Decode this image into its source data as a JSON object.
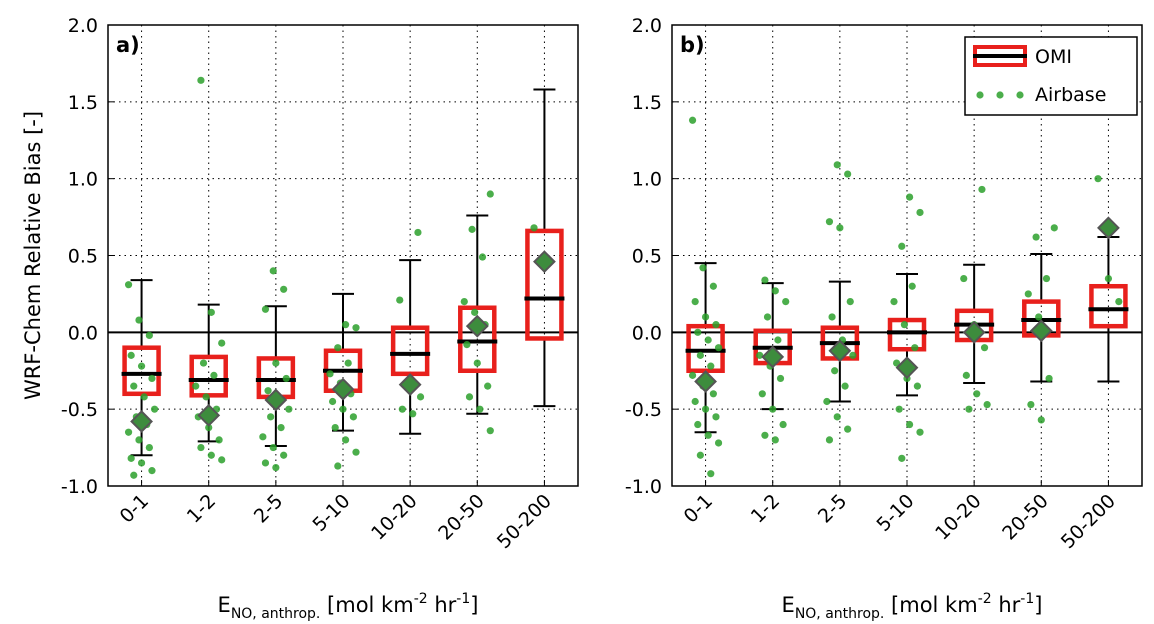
{
  "chart_data": [
    {
      "type": "box",
      "label": "a)",
      "ylabel": "WRF-Chem Relative Bias [-]",
      "xlabel": [
        {
          "text": "E"
        },
        {
          "text": "NO, anthrop.",
          "shift": "sub"
        },
        {
          "text": "  [mol km"
        },
        {
          "text": "-2",
          "shift": "sup"
        },
        {
          "text": " hr"
        },
        {
          "text": "-1",
          "shift": "sup"
        },
        {
          "text": "]"
        }
      ],
      "categories": [
        "0-1",
        "1-2",
        "2-5",
        "5-10",
        "10-20",
        "20-50",
        "50-200"
      ],
      "ylim": [
        -1,
        2
      ],
      "yticks": [
        {
          "value": -1,
          "label": "-1.0"
        },
        {
          "value": -0.5,
          "label": "-0.5"
        },
        {
          "value": 0,
          "label": "0.0"
        },
        {
          "value": 0.5,
          "label": "0.5"
        },
        {
          "value": 1,
          "label": "1.0"
        },
        {
          "value": 1.5,
          "label": "1.5"
        },
        {
          "value": 2,
          "label": "2.0"
        }
      ],
      "grid": true,
      "reference_line": 0,
      "series": [
        {
          "color": "#e8201c",
          "median_color": "#000000",
          "whisker_color": "#000000",
          "q1": [
            -0.4,
            -0.41,
            -0.42,
            -0.38,
            -0.27,
            -0.25,
            -0.04
          ],
          "median": [
            -0.27,
            -0.31,
            -0.31,
            -0.25,
            -0.14,
            -0.06,
            0.22
          ],
          "q3": [
            -0.1,
            -0.16,
            -0.17,
            -0.12,
            0.03,
            0.16,
            0.66
          ],
          "whislo": [
            -0.8,
            -0.71,
            -0.74,
            -0.64,
            -0.66,
            -0.53,
            -0.48
          ],
          "whishi": [
            0.34,
            0.18,
            0.17,
            0.25,
            0.47,
            0.76,
            1.58
          ]
        },
        {
          "color": "#2ca02c",
          "mean_color": "#3d8c3d",
          "points": [
            [
              0.31,
              0.08,
              -0.02,
              -0.15,
              -0.22,
              -0.3,
              -0.35,
              -0.42,
              -0.5,
              -0.55,
              -0.6,
              -0.65,
              -0.7,
              -0.75,
              -0.82,
              -0.85,
              -0.9,
              -0.93
            ],
            [
              1.64,
              0.13,
              -0.07,
              -0.2,
              -0.28,
              -0.35,
              -0.42,
              -0.5,
              -0.55,
              -0.62,
              -0.7,
              -0.75,
              -0.8,
              -0.83
            ],
            [
              0.4,
              0.28,
              0.15,
              -0.2,
              -0.3,
              -0.38,
              -0.45,
              -0.5,
              -0.55,
              -0.62,
              -0.68,
              -0.75,
              -0.8,
              -0.85,
              -0.88
            ],
            [
              0.05,
              0.03,
              -0.1,
              -0.2,
              -0.27,
              -0.33,
              -0.4,
              -0.45,
              -0.5,
              -0.55,
              -0.62,
              -0.7,
              -0.78,
              -0.87
            ],
            [
              0.65,
              0.21,
              -0.3,
              -0.42,
              -0.5,
              -0.53
            ],
            [
              0.9,
              0.67,
              0.49,
              0.2,
              0.13,
              0.05,
              -0.08,
              -0.2,
              -0.35,
              -0.42,
              -0.5,
              -0.64
            ],
            [
              0.68,
              0.46
            ]
          ],
          "mean": [
            -0.58,
            -0.54,
            -0.44,
            -0.37,
            -0.34,
            0.04,
            0.46
          ]
        }
      ]
    },
    {
      "type": "box",
      "label": "b)",
      "xlabel": [
        {
          "text": "E"
        },
        {
          "text": "NO, anthrop.",
          "shift": "sub"
        },
        {
          "text": "  [mol km"
        },
        {
          "text": "-2",
          "shift": "sup"
        },
        {
          "text": " hr"
        },
        {
          "text": "-1",
          "shift": "sup"
        },
        {
          "text": "]"
        }
      ],
      "categories": [
        "0-1",
        "1-2",
        "2-5",
        "5-10",
        "10-20",
        "20-50",
        "50-200"
      ],
      "ylim": [
        -1,
        2
      ],
      "yticks": [
        {
          "value": -1,
          "label": "-1.0"
        },
        {
          "value": -0.5,
          "label": "-0.5"
        },
        {
          "value": 0,
          "label": "0.0"
        },
        {
          "value": 0.5,
          "label": "0.5"
        },
        {
          "value": 1,
          "label": "1.0"
        },
        {
          "value": 1.5,
          "label": "1.5"
        },
        {
          "value": 2,
          "label": "2.0"
        }
      ],
      "grid": true,
      "reference_line": 0,
      "legend": "upper right",
      "series": [
        {
          "name": "OMI",
          "color": "#e8201c",
          "median_color": "#000000",
          "whisker_color": "#000000",
          "q1": [
            -0.25,
            -0.2,
            -0.17,
            -0.11,
            -0.05,
            -0.02,
            0.04
          ],
          "median": [
            -0.12,
            -0.1,
            -0.07,
            0.0,
            0.05,
            0.08,
            0.15
          ],
          "q3": [
            0.04,
            0.01,
            0.03,
            0.08,
            0.14,
            0.2,
            0.3
          ],
          "whislo": [
            -0.65,
            -0.5,
            -0.45,
            -0.41,
            -0.33,
            -0.32,
            -0.32
          ],
          "whishi": [
            0.45,
            0.32,
            0.33,
            0.38,
            0.44,
            0.51,
            0.62
          ]
        },
        {
          "name": "Airbase",
          "color": "#2ca02c",
          "mean_color": "#3d8c3d",
          "points": [
            [
              1.38,
              0.42,
              0.3,
              0.2,
              0.1,
              0.05,
              0,
              -0.05,
              -0.1,
              -0.15,
              -0.22,
              -0.28,
              -0.35,
              -0.4,
              -0.45,
              -0.5,
              -0.55,
              -0.6,
              -0.67,
              -0.72,
              -0.8,
              -0.92
            ],
            [
              0.34,
              0.27,
              0.2,
              0.1,
              -0.05,
              -0.15,
              -0.22,
              -0.3,
              -0.4,
              -0.5,
              -0.6,
              -0.67,
              -0.7
            ],
            [
              1.09,
              1.03,
              0.72,
              0.68,
              0.2,
              0.1,
              -0.05,
              -0.15,
              -0.25,
              -0.35,
              -0.45,
              -0.55,
              -0.63,
              -0.7
            ],
            [
              0.88,
              0.78,
              0.56,
              0.3,
              0.2,
              0.05,
              -0.1,
              -0.2,
              -0.3,
              -0.35,
              -0.5,
              -0.6,
              -0.65,
              -0.82
            ],
            [
              0.93,
              0.35,
              0.05,
              -0.1,
              -0.28,
              -0.4,
              -0.47,
              -0.5
            ],
            [
              0.68,
              0.62,
              0.35,
              0.25,
              0.1,
              -0.3,
              -0.47,
              -0.57
            ],
            [
              1.0,
              0.35,
              0.2
            ]
          ],
          "mean": [
            -0.32,
            -0.16,
            -0.12,
            -0.23,
            0.0,
            0.01,
            0.68
          ]
        }
      ]
    }
  ]
}
